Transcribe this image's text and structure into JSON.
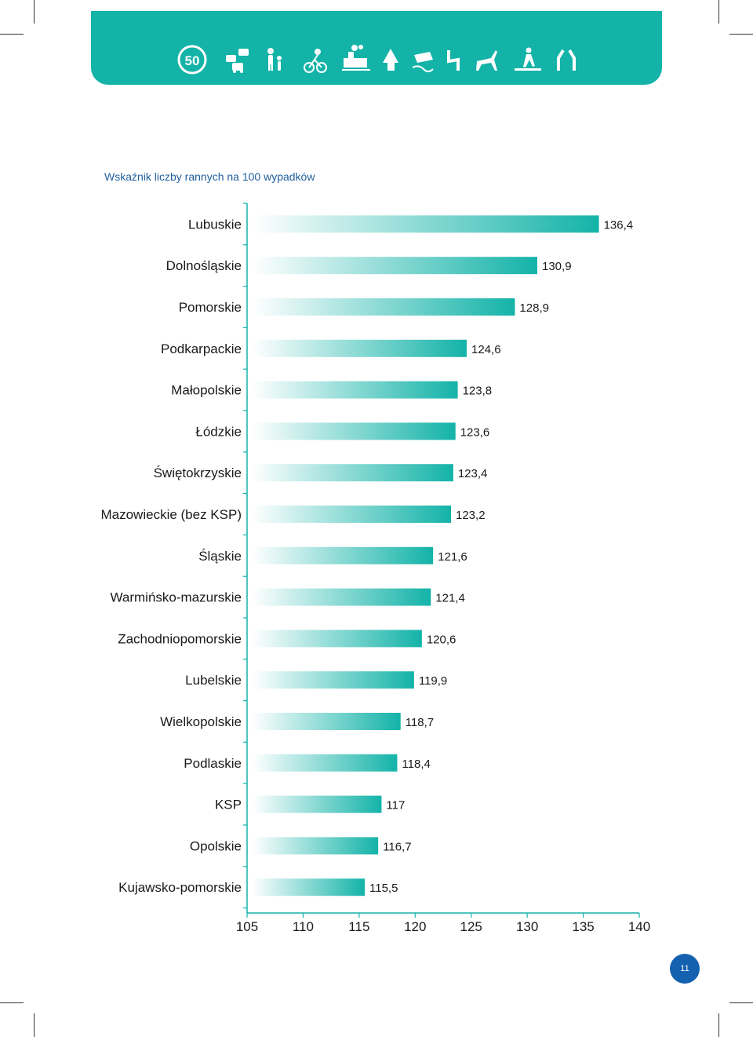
{
  "header": {
    "speed_limit": "50",
    "icons": [
      "speed-limit-50-icon",
      "traffic-jam-icon",
      "pedestrian-with-child-icon",
      "cyclist-icon",
      "train-crossing-icon",
      "tree-icon",
      "skidding-car-icon",
      "winding-road-icon",
      "wild-animal-icon",
      "pedestrian-crossing-icon",
      "road-narrowing-icon"
    ]
  },
  "colors": {
    "banner": "#13b3a8",
    "bar_end": "#13b3a8",
    "title": "#1f5f9e",
    "page_badge": "#1461b0"
  },
  "chart_data": {
    "type": "bar",
    "orientation": "horizontal",
    "title": "Wskaźnik liczby rannych na 100 wypadków",
    "categories": [
      "Lubuskie",
      "Dolnośląskie",
      "Pomorskie",
      "Podkarpackie",
      "Małopolskie",
      "Łódzkie",
      "Świętokrzyskie",
      "Mazowieckie (bez KSP)",
      "Śląskie",
      "Warmińsko-mazurskie",
      "Zachodniopomorskie",
      "Lubelskie",
      "Wielkopolskie",
      "Podlaskie",
      "KSP",
      "Opolskie",
      "Kujawsko-pomorskie"
    ],
    "values": [
      136.4,
      130.9,
      128.9,
      124.6,
      123.8,
      123.6,
      123.4,
      123.2,
      121.6,
      121.4,
      120.6,
      119.9,
      118.7,
      118.4,
      117,
      116.7,
      115.5
    ],
    "value_labels": [
      "136,4",
      "130,9",
      "128,9",
      "124,6",
      "123,8",
      "123,6",
      "123,4",
      "123,2",
      "121,6",
      "121,4",
      "120,6",
      "119,9",
      "118,7",
      "118,4",
      "117",
      "116,7",
      "115,5"
    ],
    "xlim": [
      105,
      140
    ],
    "xticks": [
      "105",
      "110",
      "115",
      "120",
      "125",
      "130",
      "135",
      "140"
    ],
    "xlabel": "",
    "ylabel": "",
    "grid": false
  },
  "footer": {
    "page_number": "11"
  }
}
